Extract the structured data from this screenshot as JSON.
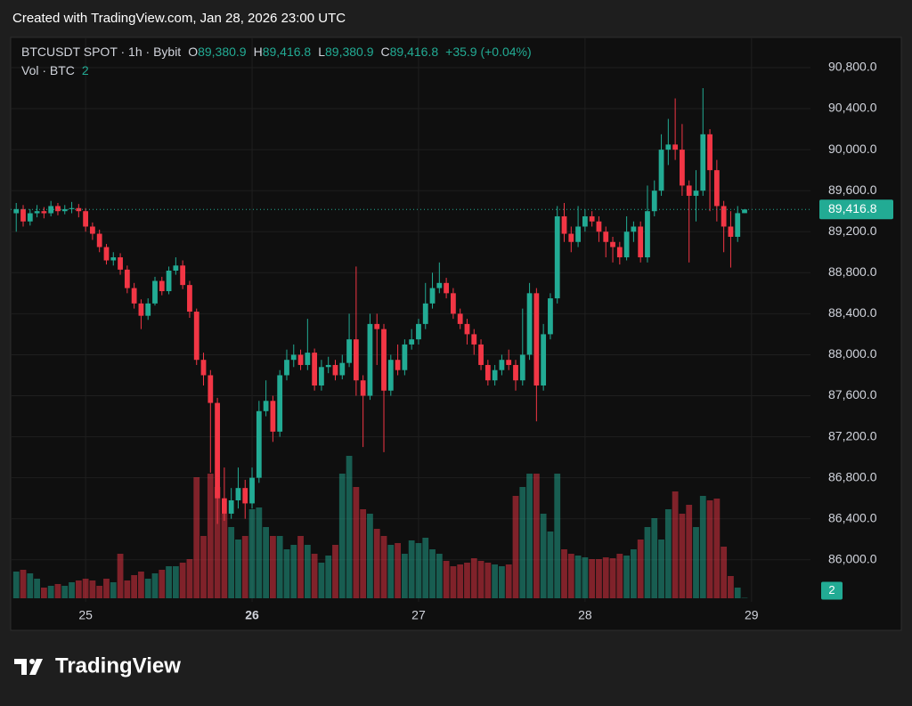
{
  "header": "Created with TradingView.com, Jan 28, 2026 23:00 UTC",
  "footer": {
    "brand": "TradingView"
  },
  "chart_data": {
    "type": "candlestick",
    "legend": {
      "title": "BTCUSDT SPOT · 1h · Bybit",
      "fields": [
        {
          "key": "O",
          "value": "89,380.9"
        },
        {
          "key": "H",
          "value": "89,416.8"
        },
        {
          "key": "L",
          "value": "89,380.9"
        },
        {
          "key": "C",
          "value": "89,416.8"
        }
      ],
      "change": "+35.9 (+0.04%)"
    },
    "volume_legend": {
      "title": "Vol · BTC",
      "value": "2"
    },
    "up_color": "#22ab94",
    "down_color": "#f23645",
    "ylim": [
      85590,
      91095
    ],
    "yticks": [
      {
        "value": 86000,
        "label": "86,000.0"
      },
      {
        "value": 86400,
        "label": "86,400.0"
      },
      {
        "value": 86800,
        "label": "86,800.0"
      },
      {
        "value": 87200,
        "label": "87,200.0"
      },
      {
        "value": 87600,
        "label": "87,600.0"
      },
      {
        "value": 88000,
        "label": "88,000.0"
      },
      {
        "value": 88400,
        "label": "88,400.0"
      },
      {
        "value": 88800,
        "label": "88,800.0"
      },
      {
        "value": 89200,
        "label": "89,200.0"
      },
      {
        "value": 89600,
        "label": "89,600.0"
      },
      {
        "value": 90000,
        "label": "90,000.0"
      },
      {
        "value": 90400,
        "label": "90,400.0"
      },
      {
        "value": 90800,
        "label": "90,800.0"
      }
    ],
    "xlim": [
      -0.8,
      114.5
    ],
    "xticks": [
      {
        "value": 10,
        "label": "25"
      },
      {
        "value": 34,
        "label": "26",
        "bold": true
      },
      {
        "value": 58,
        "label": "27"
      },
      {
        "value": 82,
        "label": "28"
      },
      {
        "value": 106,
        "label": "29"
      }
    ],
    "last_price": {
      "value": 89416.8,
      "label": "89,416.8"
    },
    "last_volume": {
      "value": 2,
      "label": "2"
    },
    "ohlc": [
      [
        89380,
        89480,
        89200,
        89420
      ],
      [
        89420,
        89460,
        89250,
        89300
      ],
      [
        89300,
        89420,
        89260,
        89380
      ],
      [
        89380,
        89460,
        89340,
        89400
      ],
      [
        89400,
        89440,
        89330,
        89380
      ],
      [
        89380,
        89500,
        89350,
        89450
      ],
      [
        89450,
        89480,
        89360,
        89400
      ],
      [
        89400,
        89460,
        89370,
        89420
      ],
      [
        89420,
        89490,
        89380,
        89430
      ],
      [
        89430,
        89470,
        89340,
        89400
      ],
      [
        89400,
        89430,
        89200,
        89250
      ],
      [
        89250,
        89290,
        89120,
        89180
      ],
      [
        89180,
        89220,
        89000,
        89050
      ],
      [
        89050,
        89080,
        88880,
        88920
      ],
      [
        88920,
        89000,
        88870,
        88950
      ],
      [
        88950,
        88990,
        88780,
        88830
      ],
      [
        88830,
        88870,
        88600,
        88650
      ],
      [
        88650,
        88700,
        88450,
        88500
      ],
      [
        88500,
        88540,
        88250,
        88380
      ],
      [
        88380,
        88550,
        88340,
        88500
      ],
      [
        88500,
        88760,
        88480,
        88720
      ],
      [
        88720,
        88760,
        88580,
        88620
      ],
      [
        88620,
        88860,
        88590,
        88820
      ],
      [
        88820,
        88950,
        88780,
        88870
      ],
      [
        88870,
        88920,
        88640,
        88680
      ],
      [
        88680,
        88720,
        88360,
        88420
      ],
      [
        88420,
        88450,
        87900,
        87950
      ],
      [
        87950,
        88020,
        87700,
        87800
      ],
      [
        87800,
        87850,
        86850,
        87530
      ],
      [
        87530,
        87580,
        86350,
        86600
      ],
      [
        86600,
        86900,
        86380,
        86450
      ],
      [
        86450,
        86700,
        86400,
        86580
      ],
      [
        86580,
        86900,
        86500,
        86700
      ],
      [
        86700,
        86780,
        86400,
        86550
      ],
      [
        86550,
        86900,
        86500,
        86800
      ],
      [
        86800,
        87550,
        86750,
        87450
      ],
      [
        87450,
        87750,
        87400,
        87550
      ],
      [
        87550,
        87600,
        87150,
        87250
      ],
      [
        87250,
        87850,
        87200,
        87800
      ],
      [
        87800,
        88050,
        87750,
        87950
      ],
      [
        87950,
        88100,
        87880,
        88000
      ],
      [
        88000,
        88050,
        87850,
        87900
      ],
      [
        87900,
        88350,
        87850,
        88020
      ],
      [
        88020,
        88060,
        87650,
        87700
      ],
      [
        87700,
        87950,
        87650,
        87880
      ],
      [
        87880,
        87980,
        87820,
        87900
      ],
      [
        87900,
        87950,
        87750,
        87800
      ],
      [
        87800,
        88000,
        87760,
        87920
      ],
      [
        87920,
        88400,
        87880,
        88150
      ],
      [
        88150,
        88860,
        87600,
        87750
      ],
      [
        87750,
        87800,
        87100,
        87600
      ],
      [
        87600,
        88400,
        87560,
        88300
      ],
      [
        88300,
        88400,
        87900,
        88250
      ],
      [
        88250,
        88300,
        87050,
        87650
      ],
      [
        87650,
        88000,
        87600,
        87950
      ],
      [
        87950,
        88100,
        87800,
        87850
      ],
      [
        87850,
        88150,
        87800,
        88100
      ],
      [
        88100,
        88250,
        88050,
        88150
      ],
      [
        88150,
        88350,
        88100,
        88300
      ],
      [
        88300,
        88700,
        88250,
        88500
      ],
      [
        88500,
        88800,
        88450,
        88650
      ],
      [
        88650,
        88900,
        88600,
        88700
      ],
      [
        88700,
        88750,
        88550,
        88600
      ],
      [
        88600,
        88650,
        88350,
        88400
      ],
      [
        88400,
        88450,
        88250,
        88300
      ],
      [
        88300,
        88350,
        88100,
        88200
      ],
      [
        88200,
        88250,
        88000,
        88100
      ],
      [
        88100,
        88150,
        87850,
        87900
      ],
      [
        87900,
        87950,
        87700,
        87750
      ],
      [
        87750,
        87900,
        87700,
        87850
      ],
      [
        87850,
        88000,
        87800,
        87950
      ],
      [
        87950,
        88050,
        87850,
        87900
      ],
      [
        87900,
        87950,
        87650,
        87750
      ],
      [
        87750,
        88450,
        87700,
        88000
      ],
      [
        88000,
        88700,
        87950,
        88600
      ],
      [
        88600,
        88650,
        87350,
        87700
      ],
      [
        87700,
        88300,
        87650,
        88200
      ],
      [
        88200,
        88600,
        88150,
        88550
      ],
      [
        88550,
        89450,
        88500,
        89350
      ],
      [
        89350,
        89480,
        89100,
        89180
      ],
      [
        89180,
        89250,
        89000,
        89100
      ],
      [
        89100,
        89450,
        89050,
        89250
      ],
      [
        89250,
        89420,
        89200,
        89350
      ],
      [
        89350,
        89400,
        89250,
        89300
      ],
      [
        89300,
        89350,
        89100,
        89200
      ],
      [
        89200,
        89250,
        88950,
        89100
      ],
      [
        89100,
        89150,
        88900,
        89050
      ],
      [
        89050,
        89100,
        88880,
        88950
      ],
      [
        88950,
        89350,
        88920,
        89200
      ],
      [
        89200,
        89300,
        89100,
        89250
      ],
      [
        89250,
        89300,
        88900,
        88950
      ],
      [
        88950,
        89650,
        88900,
        89400
      ],
      [
        89400,
        89700,
        89350,
        89600
      ],
      [
        89600,
        90150,
        89550,
        90000
      ],
      [
        90000,
        90300,
        89850,
        90050
      ],
      [
        90050,
        90500,
        89900,
        90000
      ],
      [
        90000,
        90250,
        89550,
        89650
      ],
      [
        89650,
        89700,
        88900,
        89550
      ],
      [
        89550,
        89800,
        89300,
        89600
      ],
      [
        89600,
        90600,
        89550,
        90150
      ],
      [
        90150,
        90200,
        89400,
        89800
      ],
      [
        89800,
        89900,
        89300,
        89450
      ],
      [
        89450,
        89500,
        89000,
        89250
      ],
      [
        89250,
        89400,
        88850,
        89150
      ],
      [
        89150,
        89450,
        89100,
        89380.9
      ],
      [
        89380.9,
        89416.8,
        89380.9,
        89416.8
      ]
    ],
    "volume": [
      120,
      128,
      112,
      88,
      48,
      56,
      64,
      56,
      72,
      80,
      88,
      80,
      56,
      88,
      72,
      200,
      80,
      104,
      120,
      88,
      112,
      128,
      144,
      144,
      160,
      176,
      544,
      280,
      560,
      500,
      380,
      320,
      264,
      280,
      400,
      408,
      320,
      280,
      280,
      220,
      240,
      280,
      240,
      200,
      160,
      192,
      240,
      560,
      640,
      500,
      400,
      380,
      312,
      280,
      240,
      248,
      200,
      260,
      248,
      272,
      220,
      200,
      168,
      144,
      152,
      160,
      180,
      168,
      160,
      152,
      144,
      152,
      460,
      500,
      560,
      560,
      380,
      300,
      560,
      220,
      200,
      192,
      184,
      176,
      176,
      184,
      180,
      200,
      192,
      220,
      264,
      320,
      360,
      264,
      400,
      480,
      380,
      420,
      320,
      460,
      440,
      448,
      232,
      100,
      48,
      2
    ]
  }
}
